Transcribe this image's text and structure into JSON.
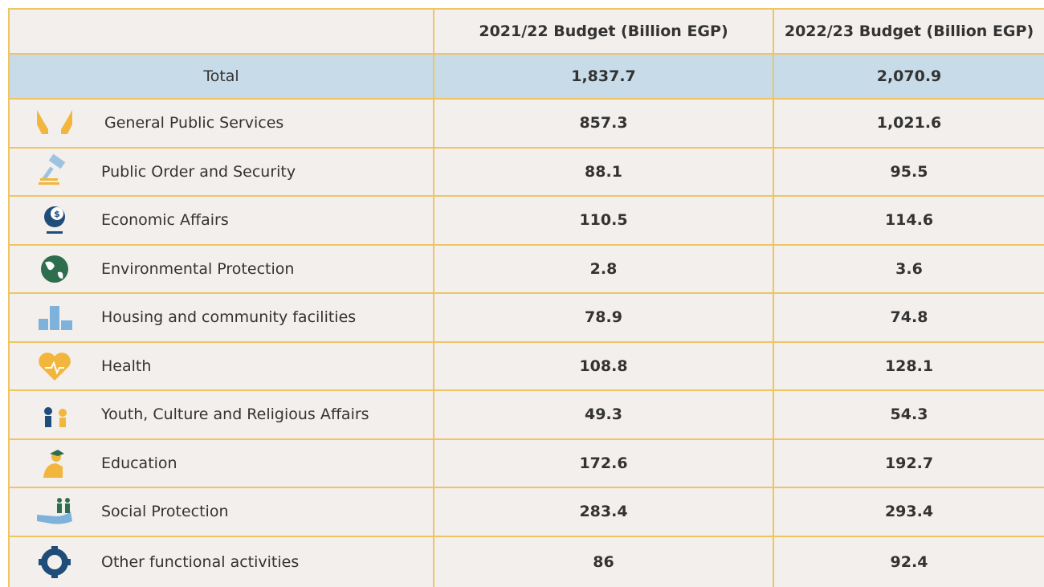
{
  "header": {
    "col2": "2021/22 Budget (Billion EGP)",
    "col3": "2022/23 Budget (Billion EGP)"
  },
  "total": {
    "label": "Total",
    "col2": "1,837.7",
    "col3": "2,070.9"
  },
  "rows": [
    {
      "label": "General Public Services",
      "col2": "857.3",
      "col3": "1,021.6"
    },
    {
      "label": "Public Order and Security",
      "col2": "88.1",
      "col3": "95.5"
    },
    {
      "label": "Economic Affairs",
      "col2": "110.5",
      "col3": "114.6"
    },
    {
      "label": "Environmental Protection",
      "col2": "2.8",
      "col3": "3.6"
    },
    {
      "label": "Housing and community facilities",
      "col2": "78.9",
      "col3": "74.8"
    },
    {
      "label": "Health",
      "col2": "108.8",
      "col3": "128.1"
    },
    {
      "label": "Youth, Culture and Religious Affairs",
      "col2": "49.3",
      "col3": "54.3"
    },
    {
      "label": "Education",
      "col2": "172.6",
      "col3": "192.7"
    },
    {
      "label": "Social Protection",
      "col2": "283.4",
      "col3": "293.4"
    },
    {
      "label": "Other functional activities",
      "col2": "86",
      "col3": "92.4"
    }
  ]
}
